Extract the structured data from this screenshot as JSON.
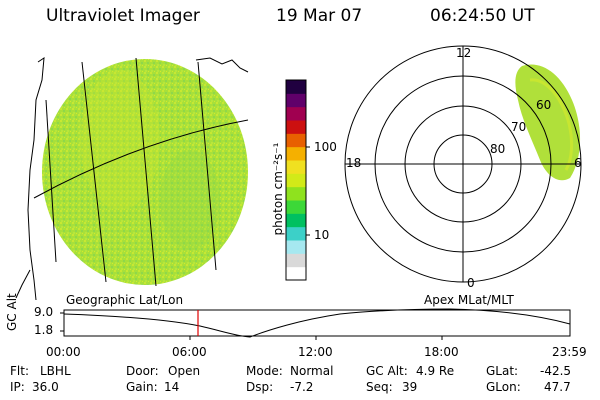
{
  "header": {
    "title": "Ultraviolet Imager",
    "date": "19 Mar 07",
    "time": "06:24:50 UT"
  },
  "colorbar": {
    "unit_label": "photon cm⁻²s⁻¹",
    "tick_100": "100",
    "tick_10": "10",
    "colors": [
      "#ffffff",
      "#d9d9d9",
      "#a6e8f0",
      "#3cd0c8",
      "#00c060",
      "#3cd838",
      "#8fe21e",
      "#d2ea18",
      "#f0e020",
      "#f5b000",
      "#e86000",
      "#cc1010",
      "#a00050",
      "#60006a",
      "#200040"
    ]
  },
  "polar_plot": {
    "mlt_labels": {
      "top": "12",
      "left": "18",
      "right": "6",
      "bottom": "0"
    },
    "lat_labels": [
      "60",
      "70",
      "80"
    ]
  },
  "labels": {
    "left_plot": "Geographic Lat/Lon",
    "right_plot": "Apex  MLat/MLT"
  },
  "timeline": {
    "y_axis_label": "GC Alt",
    "y_ticks": [
      "9.0",
      "1.8"
    ],
    "x_ticks": [
      "00:00",
      "06:00",
      "12:00",
      "18:00",
      "23:59"
    ]
  },
  "info": {
    "row1": [
      {
        "label": "Flt:",
        "value": "LBHL"
      },
      {
        "label": "Door:",
        "value": "Open"
      },
      {
        "label": "Mode:",
        "value": "Normal"
      },
      {
        "label": "GC Alt:",
        "value": "4.9 Re"
      },
      {
        "label": "GLat:",
        "value": "-42.5"
      }
    ],
    "row2": [
      {
        "label": "IP:",
        "value": "36.0"
      },
      {
        "label": "Gain:",
        "value": "14"
      },
      {
        "label": "Dsp:",
        "value": "-7.2"
      },
      {
        "label": "Seq:",
        "value": "39"
      },
      {
        "label": "GLon:",
        "value": "47.7"
      }
    ]
  }
}
